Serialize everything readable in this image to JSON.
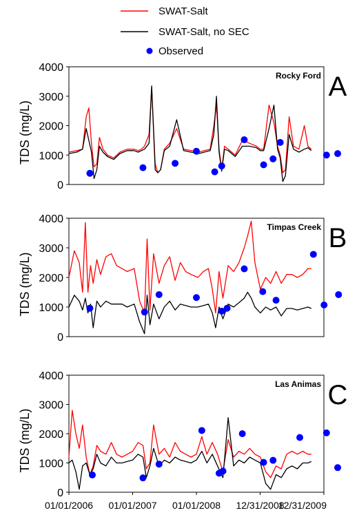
{
  "legend": {
    "items": [
      {
        "label": "SWAT-Salt",
        "kind": "line",
        "color": "#ff0000"
      },
      {
        "label": "SWAT-Salt, no SEC",
        "kind": "line",
        "color": "#000000"
      },
      {
        "label": "Observed",
        "kind": "marker",
        "color": "#0000ff"
      }
    ]
  },
  "x_axis": {
    "tick_labels": [
      "01/01/2006",
      "01/01/2007",
      "01/01/2008",
      "12/31/2008",
      "12/31/2009"
    ],
    "tick_dates": [
      "2006-01-01",
      "2007-01-01",
      "2008-01-01",
      "2008-12-31",
      "2009-12-31"
    ],
    "range": [
      "2006-01-01",
      "2009-12-31"
    ]
  },
  "colors": {
    "swat": "#ff0000",
    "nosec": "#000000",
    "observed": "#0000ff"
  },
  "chart_data": [
    {
      "type": "line",
      "panel_letter": "A",
      "site": "Rocky Ford",
      "ylabel": "TDS (mg/L)",
      "ylim": [
        0,
        4000
      ],
      "yticks": [
        "0",
        "1000",
        "2000",
        "3000",
        "4000"
      ],
      "xlim": [
        "2006-01-01",
        "2009-12-31"
      ],
      "series": [
        {
          "name": "SWAT-Salt",
          "color": "#ff0000",
          "x": [
            "2006-01-01",
            "2006-02-15",
            "2006-03-20",
            "2006-04-10",
            "2006-04-25",
            "2006-05-10",
            "2006-05-25",
            "2006-06-10",
            "2006-06-25",
            "2006-07-15",
            "2006-08-10",
            "2006-09-15",
            "2006-10-20",
            "2006-12-01",
            "2007-01-10",
            "2007-02-01",
            "2007-02-20",
            "2007-03-10",
            "2007-04-05",
            "2007-04-20",
            "2007-05-10",
            "2007-05-25",
            "2007-06-10",
            "2007-07-01",
            "2007-08-01",
            "2007-09-10",
            "2007-10-20",
            "2007-12-01",
            "2008-01-15",
            "2008-02-15",
            "2008-03-20",
            "2008-04-10",
            "2008-04-25",
            "2008-05-10",
            "2008-05-25",
            "2008-06-10",
            "2008-07-01",
            "2008-08-10",
            "2008-09-20",
            "2008-11-01",
            "2008-12-10",
            "2008-12-31",
            "2009-01-20",
            "2009-02-20",
            "2009-03-20",
            "2009-04-10",
            "2009-04-25",
            "2009-05-10",
            "2009-05-25",
            "2009-06-15",
            "2009-07-10",
            "2009-08-10",
            "2009-09-10",
            "2009-10-01",
            "2009-10-20"
          ],
          "y": [
            1100,
            1150,
            1200,
            2300,
            2600,
            1400,
            600,
            700,
            1600,
            1200,
            1000,
            900,
            1100,
            1200,
            1200,
            1150,
            1200,
            1300,
            1700,
            3300,
            700,
            400,
            500,
            1200,
            1400,
            1900,
            1200,
            1150,
            1100,
            1150,
            1200,
            2000,
            2700,
            1200,
            500,
            1300,
            1200,
            1000,
            1500,
            1400,
            1300,
            1200,
            1200,
            2700,
            2100,
            1300,
            1000,
            400,
            500,
            2300,
            1300,
            1200,
            2000,
            1300,
            1200
          ]
        },
        {
          "name": "SWAT-Salt, no SEC",
          "color": "#000000",
          "x": [
            "2006-01-01",
            "2006-02-15",
            "2006-03-20",
            "2006-04-10",
            "2006-04-25",
            "2006-05-10",
            "2006-05-25",
            "2006-06-10",
            "2006-06-25",
            "2006-07-15",
            "2006-08-10",
            "2006-09-15",
            "2006-10-20",
            "2006-12-01",
            "2007-01-10",
            "2007-02-01",
            "2007-02-20",
            "2007-03-10",
            "2007-04-05",
            "2007-04-20",
            "2007-05-10",
            "2007-05-25",
            "2007-06-10",
            "2007-07-01",
            "2007-08-01",
            "2007-09-10",
            "2007-10-20",
            "2007-12-01",
            "2008-01-15",
            "2008-02-15",
            "2008-03-20",
            "2008-04-10",
            "2008-04-25",
            "2008-05-10",
            "2008-05-25",
            "2008-06-10",
            "2008-07-01",
            "2008-08-10",
            "2008-09-20",
            "2008-11-01",
            "2008-12-10",
            "2008-12-31",
            "2009-01-20",
            "2009-02-20",
            "2009-03-20",
            "2009-04-10",
            "2009-04-25",
            "2009-05-10",
            "2009-05-25",
            "2009-06-15",
            "2009-07-10",
            "2009-08-10",
            "2009-09-10",
            "2009-10-01",
            "2009-10-20"
          ],
          "y": [
            1050,
            1100,
            1200,
            1900,
            1500,
            1100,
            200,
            500,
            1300,
            1100,
            950,
            850,
            1050,
            1150,
            1150,
            1100,
            1150,
            1200,
            1400,
            3350,
            500,
            400,
            500,
            1150,
            1300,
            2200,
            1150,
            1100,
            1050,
            1100,
            1150,
            1700,
            3000,
            1100,
            450,
            1200,
            1150,
            950,
            1300,
            1300,
            1250,
            1150,
            1150,
            1900,
            2700,
            1200,
            900,
            100,
            300,
            1700,
            1200,
            1100,
            1200,
            1250,
            1150
          ]
        },
        {
          "name": "Observed",
          "color": "#0000ff",
          "marker": "circle",
          "x": [
            "2006-05-01",
            "2007-03-01",
            "2007-09-01",
            "2008-01-01",
            "2008-04-15",
            "2008-05-25",
            "2008-10-01",
            "2009-01-20",
            "2009-03-15",
            "2009-04-25",
            "2010-01-15",
            "2010-03-20"
          ],
          "y": [
            380,
            570,
            720,
            1130,
            430,
            630,
            1520,
            670,
            870,
            1430,
            1000,
            1050
          ]
        }
      ]
    },
    {
      "type": "line",
      "panel_letter": "B",
      "site": "Timpas Creek",
      "ylabel": "TDS (mg/L)",
      "ylim": [
        0,
        4000
      ],
      "yticks": [
        "0",
        "1000",
        "2000",
        "3000",
        "4000"
      ],
      "xlim": [
        "2006-01-01",
        "2009-12-31"
      ],
      "series": [
        {
          "name": "SWAT-Salt",
          "color": "#ff0000",
          "x": [
            "2006-01-01",
            "2006-02-01",
            "2006-03-01",
            "2006-03-20",
            "2006-04-05",
            "2006-04-20",
            "2006-05-05",
            "2006-05-20",
            "2006-06-10",
            "2006-07-01",
            "2006-08-01",
            "2006-09-01",
            "2006-10-01",
            "2006-11-01",
            "2006-12-01",
            "2007-01-10",
            "2007-02-10",
            "2007-03-10",
            "2007-03-25",
            "2007-04-10",
            "2007-05-01",
            "2007-06-01",
            "2007-07-01",
            "2007-08-01",
            "2007-09-01",
            "2007-10-01",
            "2007-11-01",
            "2007-12-01",
            "2008-01-10",
            "2008-02-10",
            "2008-03-10",
            "2008-04-01",
            "2008-04-20",
            "2008-05-10",
            "2008-06-01",
            "2008-07-01",
            "2008-08-01",
            "2008-09-01",
            "2008-10-01",
            "2008-10-20",
            "2008-11-10",
            "2008-12-01",
            "2009-01-01",
            "2009-02-01",
            "2009-03-01",
            "2009-04-01",
            "2009-05-01",
            "2009-06-01",
            "2009-07-01",
            "2009-08-01",
            "2009-09-01",
            "2009-10-01",
            "2009-10-20"
          ],
          "y": [
            2000,
            2900,
            2500,
            1500,
            3850,
            1500,
            2400,
            1800,
            2600,
            2100,
            2700,
            2800,
            2400,
            2300,
            2200,
            2300,
            1200,
            800,
            3300,
            900,
            2800,
            1800,
            2400,
            2700,
            1900,
            2500,
            2200,
            2100,
            2000,
            2200,
            2300,
            1600,
            800,
            2200,
            1300,
            2400,
            2200,
            2500,
            3000,
            3400,
            3900,
            2500,
            1600,
            2000,
            1800,
            2200,
            1800,
            2100,
            2100,
            2000,
            2100,
            2300,
            2300
          ]
        },
        {
          "name": "SWAT-Salt, no SEC",
          "color": "#000000",
          "x": [
            "2006-01-01",
            "2006-02-01",
            "2006-03-01",
            "2006-03-20",
            "2006-04-05",
            "2006-04-20",
            "2006-05-05",
            "2006-05-20",
            "2006-06-10",
            "2006-07-01",
            "2006-08-01",
            "2006-09-01",
            "2006-10-01",
            "2006-11-01",
            "2006-12-01",
            "2007-01-10",
            "2007-02-10",
            "2007-03-10",
            "2007-03-25",
            "2007-04-10",
            "2007-05-01",
            "2007-06-01",
            "2007-07-01",
            "2007-08-01",
            "2007-09-01",
            "2007-10-01",
            "2007-11-01",
            "2007-12-01",
            "2008-01-10",
            "2008-02-10",
            "2008-03-10",
            "2008-04-01",
            "2008-04-20",
            "2008-05-10",
            "2008-06-01",
            "2008-07-01",
            "2008-08-01",
            "2008-09-01",
            "2008-10-01",
            "2008-10-20",
            "2008-11-10",
            "2008-12-01",
            "2009-01-01",
            "2009-02-01",
            "2009-03-01",
            "2009-04-01",
            "2009-05-01",
            "2009-06-01",
            "2009-07-01",
            "2009-08-01",
            "2009-09-01",
            "2009-10-01",
            "2009-10-20"
          ],
          "y": [
            1000,
            1400,
            1200,
            900,
            1300,
            800,
            1100,
            300,
            1200,
            1000,
            1200,
            1100,
            1100,
            1100,
            1000,
            1100,
            500,
            100,
            1400,
            400,
            1100,
            600,
            1000,
            1200,
            900,
            1100,
            1050,
            1000,
            1000,
            1050,
            1100,
            800,
            300,
            1000,
            600,
            1100,
            1000,
            1150,
            1300,
            1500,
            1300,
            1000,
            800,
            1000,
            900,
            1000,
            700,
            950,
            950,
            900,
            950,
            1000,
            950
          ]
        },
        {
          "name": "Observed",
          "color": "#0000ff",
          "marker": "circle",
          "x": [
            "2006-05-01",
            "2007-03-10",
            "2007-06-01",
            "2008-01-01",
            "2008-05-25",
            "2008-06-25",
            "2008-10-01",
            "2009-01-15",
            "2009-04-01",
            "2009-11-01",
            "2010-01-01",
            "2010-03-25"
          ],
          "y": [
            960,
            830,
            1420,
            1320,
            860,
            960,
            2290,
            1520,
            1230,
            2780,
            1070,
            1420
          ]
        }
      ]
    },
    {
      "type": "line",
      "panel_letter": "C",
      "site": "Las Animas",
      "ylabel": "TDS (mg/L)",
      "ylim": [
        0,
        4000
      ],
      "yticks": [
        "0",
        "1000",
        "2000",
        "3000",
        "4000"
      ],
      "xlim": [
        "2006-01-01",
        "2009-12-31"
      ],
      "series": [
        {
          "name": "SWAT-Salt",
          "color": "#ff0000",
          "x": [
            "2006-01-01",
            "2006-01-20",
            "2006-02-10",
            "2006-03-01",
            "2006-03-20",
            "2006-04-10",
            "2006-05-01",
            "2006-05-20",
            "2006-06-10",
            "2006-07-01",
            "2006-08-01",
            "2006-09-01",
            "2006-10-01",
            "2006-11-01",
            "2006-12-01",
            "2007-01-01",
            "2007-02-01",
            "2007-03-01",
            "2007-03-20",
            "2007-04-10",
            "2007-05-01",
            "2007-06-01",
            "2007-07-01",
            "2007-08-01",
            "2007-09-01",
            "2007-10-01",
            "2007-11-01",
            "2007-12-01",
            "2008-01-01",
            "2008-02-01",
            "2008-03-01",
            "2008-04-01",
            "2008-05-01",
            "2008-06-01",
            "2008-07-01",
            "2008-08-01",
            "2008-09-01",
            "2008-10-01",
            "2008-11-01",
            "2008-12-01",
            "2009-01-01",
            "2009-02-01",
            "2009-03-01",
            "2009-04-01",
            "2009-05-01",
            "2009-06-01",
            "2009-07-01",
            "2009-08-01",
            "2009-09-01",
            "2009-10-01",
            "2009-10-20"
          ],
          "y": [
            1200,
            2800,
            2000,
            1500,
            2300,
            1200,
            600,
            900,
            1600,
            1400,
            1300,
            1700,
            1300,
            1200,
            1300,
            1400,
            1700,
            1600,
            800,
            1000,
            2300,
            1300,
            1500,
            1200,
            1700,
            1400,
            1300,
            1200,
            1300,
            1900,
            1300,
            1700,
            1300,
            700,
            1800,
            1200,
            1400,
            1300,
            1500,
            1300,
            1200,
            700,
            500,
            900,
            800,
            1300,
            1400,
            1300,
            1400,
            1300,
            1300
          ]
        },
        {
          "name": "SWAT-Salt, no SEC",
          "color": "#000000",
          "x": [
            "2006-01-01",
            "2006-01-20",
            "2006-02-10",
            "2006-03-01",
            "2006-03-20",
            "2006-04-10",
            "2006-05-01",
            "2006-05-20",
            "2006-06-10",
            "2006-07-01",
            "2006-08-01",
            "2006-09-01",
            "2006-10-01",
            "2006-11-01",
            "2006-12-01",
            "2007-01-01",
            "2007-02-01",
            "2007-03-01",
            "2007-03-20",
            "2007-04-10",
            "2007-05-01",
            "2007-06-01",
            "2007-07-01",
            "2007-08-01",
            "2007-09-01",
            "2007-10-01",
            "2007-11-01",
            "2007-12-01",
            "2008-01-01",
            "2008-02-01",
            "2008-03-01",
            "2008-04-01",
            "2008-05-01",
            "2008-06-01",
            "2008-07-01",
            "2008-08-01",
            "2008-09-01",
            "2008-10-01",
            "2008-11-01",
            "2008-12-01",
            "2009-01-01",
            "2009-02-01",
            "2009-03-01",
            "2009-04-01",
            "2009-05-01",
            "2009-06-01",
            "2009-07-01",
            "2009-08-01",
            "2009-09-01",
            "2009-10-01",
            "2009-10-20"
          ],
          "y": [
            1000,
            1100,
            700,
            100,
            900,
            1000,
            600,
            800,
            1300,
            1000,
            900,
            1200,
            1000,
            1000,
            1050,
            1100,
            1300,
            1200,
            500,
            900,
            1500,
            900,
            1100,
            1000,
            1200,
            1100,
            1050,
            1000,
            1100,
            1400,
            1000,
            1300,
            900,
            500,
            2550,
            900,
            1100,
            1000,
            1200,
            1100,
            1000,
            300,
            100,
            600,
            500,
            800,
            900,
            800,
            1000,
            1000,
            1050
          ]
        },
        {
          "name": "Observed",
          "color": "#0000ff",
          "marker": "circle",
          "x": [
            "2006-05-15",
            "2007-03-01",
            "2007-06-01",
            "2008-02-01",
            "2008-05-10",
            "2008-06-01",
            "2008-09-20",
            "2009-01-20",
            "2009-03-15",
            "2009-08-15",
            "2010-01-15",
            "2010-03-20"
          ],
          "y": [
            590,
            490,
            960,
            2110,
            650,
            720,
            2000,
            1020,
            1090,
            1870,
            2030,
            840
          ]
        }
      ]
    }
  ]
}
